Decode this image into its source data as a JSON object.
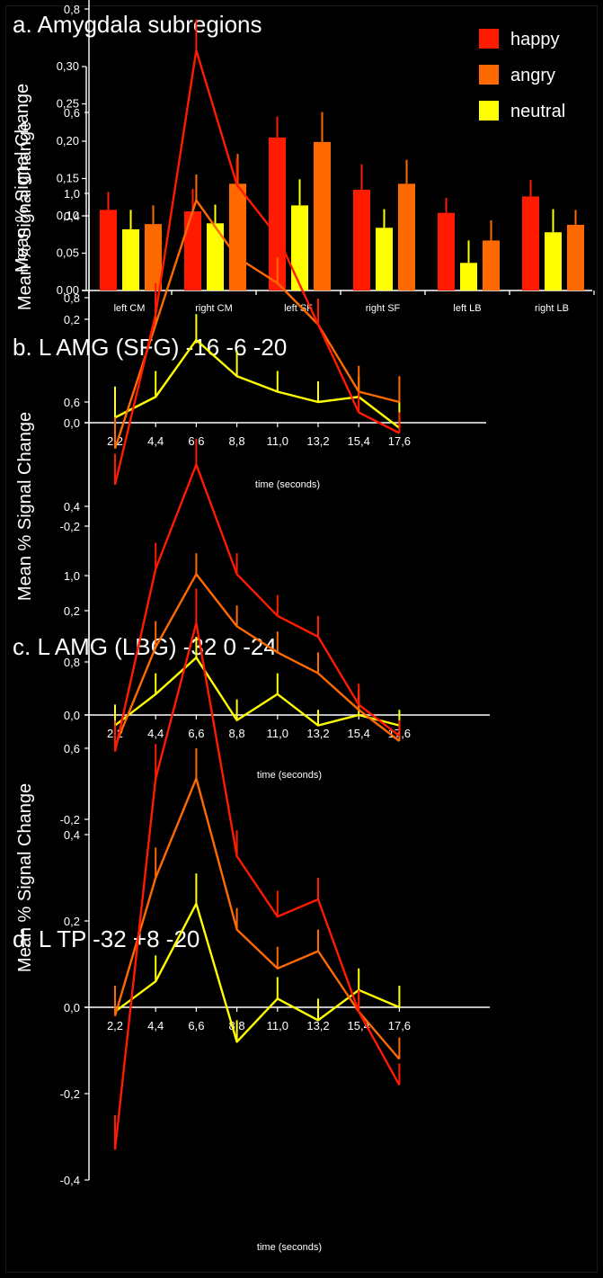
{
  "colors": {
    "happy": "#ff1a00",
    "angry": "#ff6a00",
    "neutral": "#ffff00",
    "axis": "#ffffff",
    "background": "#000000"
  },
  "chart_data": [
    {
      "type": "bar",
      "title": "a. Amygdala subregions",
      "ylabel": "Mean % Signal Change",
      "xlabel": "",
      "ylim": [
        0,
        0.3
      ],
      "yticks": [
        "0,00",
        "0,05",
        "0,10",
        "0,15",
        "0,20",
        "0,25",
        "0,30"
      ],
      "categories": [
        "left CM",
        "right CM",
        "left SF",
        "right SF",
        "left LB",
        "right LB"
      ],
      "legend": {
        "placement": "top-right",
        "entries": [
          "happy",
          "angry",
          "neutral"
        ]
      },
      "series": [
        {
          "name": "happy",
          "values": [
            0.108,
            0.106,
            0.205,
            0.135,
            0.104,
            0.126
          ],
          "errors": [
            0.024,
            0.03,
            0.028,
            0.034,
            0.02,
            0.022
          ]
        },
        {
          "name": "neutral",
          "values": [
            0.082,
            0.09,
            0.114,
            0.084,
            0.037,
            0.078
          ],
          "errors": [
            0.026,
            0.025,
            0.035,
            0.025,
            0.03,
            0.031
          ]
        },
        {
          "name": "angry",
          "values": [
            0.089,
            0.143,
            0.199,
            0.143,
            0.067,
            0.088
          ],
          "errors": [
            0.025,
            0.04,
            0.04,
            0.032,
            0.027,
            0.02
          ]
        }
      ]
    },
    {
      "type": "line",
      "title": "b. L AMG  (SFG)  -16 -6 -20",
      "ylabel": "Mean % Signal Change",
      "xlabel": "time (seconds)",
      "x": [
        "2,2",
        "4,4",
        "6,6",
        "8,8",
        "11,0",
        "13,2",
        "15,4",
        "17,6"
      ],
      "ylim": [
        -0.2,
        1.0
      ],
      "yticks": [
        "-0,2",
        "0,0",
        "0,2",
        "0,4",
        "0,6",
        "0,8",
        "1,0"
      ],
      "series": [
        {
          "name": "happy",
          "values": [
            -0.12,
            0.21,
            0.72,
            0.46,
            0.36,
            0.19,
            0.02,
            -0.02
          ],
          "errors": [
            0.06,
            0.06,
            0.06,
            0.05,
            0.05,
            0.05,
            0.04,
            0.04
          ]
        },
        {
          "name": "angry",
          "values": [
            -0.05,
            0.19,
            0.43,
            0.32,
            0.27,
            0.19,
            0.06,
            0.04
          ],
          "errors": [
            0.06,
            0.06,
            0.05,
            0.05,
            0.05,
            0.05,
            0.05,
            0.05
          ]
        },
        {
          "name": "neutral",
          "values": [
            0.01,
            0.05,
            0.16,
            0.09,
            0.06,
            0.04,
            0.05,
            -0.01
          ],
          "errors": [
            0.06,
            0.05,
            0.05,
            0.05,
            0.04,
            0.04,
            0.04,
            0.05
          ]
        }
      ]
    },
    {
      "type": "line",
      "title": "c. L AMG (LBG)  -32 0 -24",
      "ylabel": "Mean % Signal Change",
      "xlabel": "time (seconds)",
      "x": [
        "2,2",
        "4,4",
        "6,6",
        "8,8",
        "11,0",
        "13,2",
        "15,4",
        "17,6"
      ],
      "ylim": [
        -0.2,
        1.0
      ],
      "yticks": [
        "-0,2",
        "0,0",
        "0,2",
        "0,4",
        "0,6",
        "0,8",
        "1,0"
      ],
      "series": [
        {
          "name": "happy",
          "values": [
            -0.07,
            0.28,
            0.48,
            0.27,
            0.19,
            0.15,
            0.02,
            -0.04
          ],
          "errors": [
            0.05,
            0.05,
            0.05,
            0.04,
            0.04,
            0.04,
            0.04,
            0.03
          ]
        },
        {
          "name": "angry",
          "values": [
            -0.06,
            0.13,
            0.27,
            0.17,
            0.12,
            0.08,
            0.01,
            -0.05
          ],
          "errors": [
            0.05,
            0.05,
            0.04,
            0.04,
            0.04,
            0.04,
            0.04,
            0.03
          ]
        },
        {
          "name": "neutral",
          "values": [
            -0.02,
            0.04,
            0.11,
            -0.01,
            0.04,
            -0.02,
            0.0,
            -0.02
          ],
          "errors": [
            0.04,
            0.04,
            0.04,
            0.04,
            0.04,
            0.03,
            0.04,
            0.03
          ]
        }
      ]
    },
    {
      "type": "line",
      "title": "d. L TP   -32 +8 -20",
      "ylabel": "Mean % Signal Change",
      "xlabel": "time (seconds)",
      "x": [
        "2,2",
        "4,4",
        "6,6",
        "8,8",
        "11,0",
        "13,2",
        "15,4",
        "17,6"
      ],
      "ylim": [
        -0.4,
        1.0
      ],
      "yticks": [
        "-0,4",
        "-0,2",
        "0,0",
        "0,2",
        "0,4",
        "0,6",
        "0,8",
        "1,0"
      ],
      "series": [
        {
          "name": "happy",
          "values": [
            -0.33,
            0.53,
            0.89,
            0.35,
            0.21,
            0.25,
            -0.01,
            -0.18
          ],
          "errors": [
            0.08,
            0.08,
            0.08,
            0.06,
            0.06,
            0.05,
            0.05,
            0.05
          ]
        },
        {
          "name": "angry",
          "values": [
            -0.02,
            0.3,
            0.53,
            0.18,
            0.09,
            0.13,
            -0.01,
            -0.12
          ],
          "errors": [
            0.07,
            0.07,
            0.07,
            0.05,
            0.05,
            0.05,
            0.05,
            0.05
          ]
        },
        {
          "name": "neutral",
          "values": [
            -0.01,
            0.06,
            0.24,
            -0.08,
            0.02,
            -0.03,
            0.04,
            0.0
          ],
          "errors": [
            0.04,
            0.06,
            0.07,
            0.05,
            0.05,
            0.05,
            0.05,
            0.05
          ]
        }
      ]
    }
  ]
}
